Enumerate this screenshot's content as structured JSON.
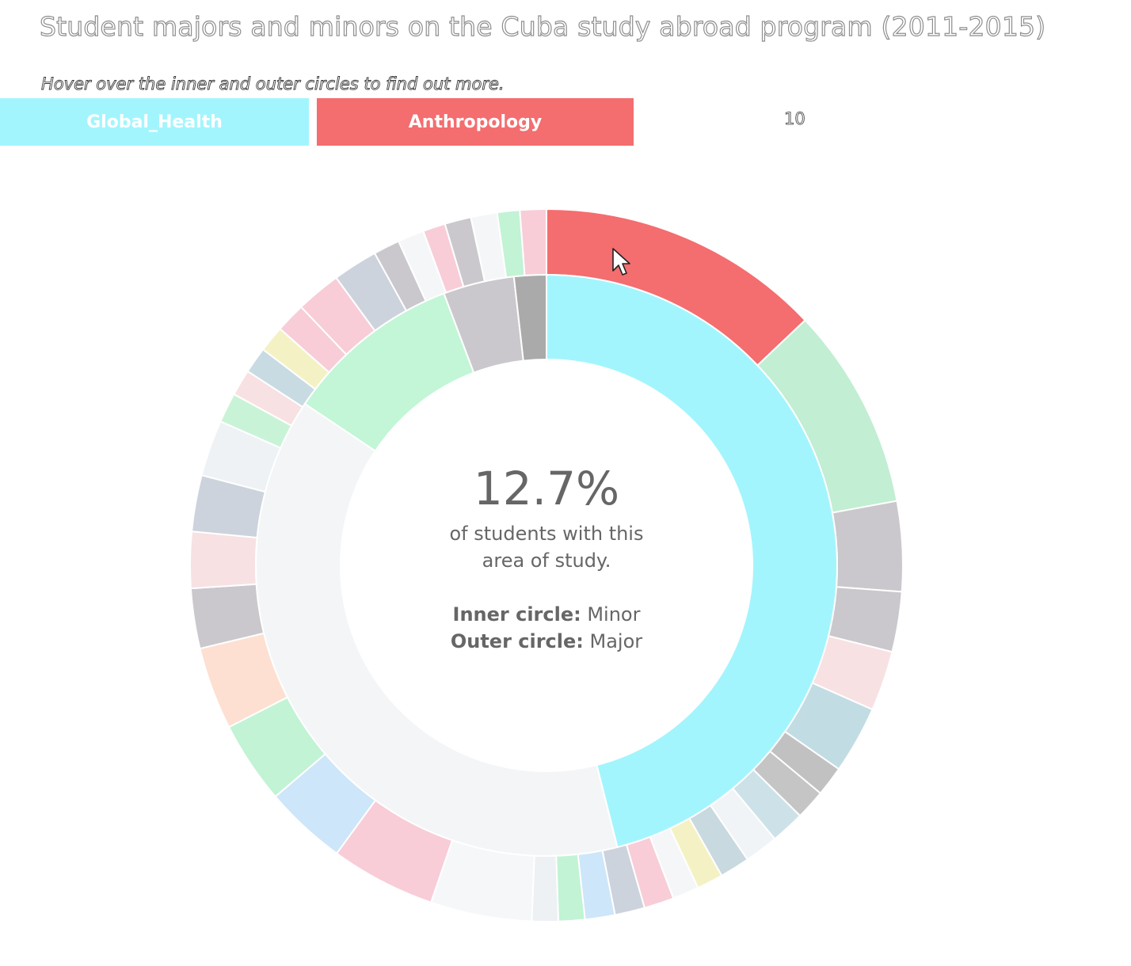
{
  "title": "Student majors and minors on the Cuba study abroad program (2011-2015)",
  "subtitle": "Hover over the inner and outer circles to find out more.",
  "breadcrumb": {
    "items": [
      {
        "label": "Global_Health",
        "color": "#a3f5fd"
      },
      {
        "label": "Anthropology",
        "color": "#f46d6f"
      }
    ],
    "end_label": "10"
  },
  "center": {
    "percentage": "12.7%",
    "line1": "of students with this",
    "line2": "area of study.",
    "inner_label": "Inner circle:",
    "inner_value": "Minor",
    "outer_label": "Outer circle:",
    "outer_value": "Major"
  },
  "chart_data": {
    "type": "sunburst",
    "highlighted_path": [
      "Global_Health",
      "Anthropology"
    ],
    "highlighted_share_percent": 12.7,
    "inner_ring": [
      {
        "share": 0.4608,
        "color": "#a3f5fd"
      },
      {
        "share": 0.383,
        "color": "#f3f5f7"
      },
      {
        "share": 0.0988,
        "color": "#c2f6d6"
      },
      {
        "share": 0.0395,
        "color": "#cac8cc"
      },
      {
        "share": 0.0179,
        "color": "#aaaaaa"
      }
    ],
    "outer_ring": [
      {
        "share": 0.1267,
        "color": "#f46d6f",
        "active": true
      },
      {
        "share": 0.09,
        "color": "#c2eed3"
      },
      {
        "share": 0.04,
        "color": "#cac8cc"
      },
      {
        "share": 0.0267,
        "color": "#cac8cc"
      },
      {
        "share": 0.0267,
        "color": "#f8e1e3"
      },
      {
        "share": 0.03,
        "color": "#c2dce4"
      },
      {
        "share": 0.0133,
        "color": "#c1c1c1"
      },
      {
        "share": 0.0133,
        "color": "#c5c5c5"
      },
      {
        "share": 0.015,
        "color": "#cde2e8"
      },
      {
        "share": 0.015,
        "color": "#f1f4f6"
      },
      {
        "share": 0.0133,
        "color": "#c8d9e0"
      },
      {
        "share": 0.0117,
        "color": "#f4f2c4"
      },
      {
        "share": 0.0117,
        "color": "#f5f6f7"
      },
      {
        "share": 0.0133,
        "color": "#f8cdd8"
      },
      {
        "share": 0.0133,
        "color": "#ccd3dc"
      },
      {
        "share": 0.0133,
        "color": "#cde6f9"
      },
      {
        "share": 0.0117,
        "color": "#c2f3d4"
      },
      {
        "share": 0.0117,
        "color": "#edf1f4"
      },
      {
        "share": 0.045,
        "color": "#f5f7f9"
      },
      {
        "share": 0.0467,
        "color": "#f8cdd8"
      },
      {
        "share": 0.0367,
        "color": "#cde6f9"
      },
      {
        "share": 0.0367,
        "color": "#c2f3d4"
      },
      {
        "share": 0.0367,
        "color": "#fde0d2"
      },
      {
        "share": 0.0267,
        "color": "#cac8cc"
      },
      {
        "share": 0.025,
        "color": "#f8e1e3"
      },
      {
        "share": 0.025,
        "color": "#ccd3dc"
      },
      {
        "share": 0.025,
        "color": "#eef2f5"
      },
      {
        "share": 0.0133,
        "color": "#c9f3d7"
      },
      {
        "share": 0.0117,
        "color": "#f8e1e3"
      },
      {
        "share": 0.0117,
        "color": "#c8dbe3"
      },
      {
        "share": 0.0117,
        "color": "#f4f2c4"
      },
      {
        "share": 0.0133,
        "color": "#f8cdd8"
      },
      {
        "share": 0.02,
        "color": "#f8cdd8"
      },
      {
        "share": 0.02,
        "color": "#ccd3dc"
      },
      {
        "share": 0.0117,
        "color": "#cac8cc"
      },
      {
        "share": 0.0117,
        "color": "#f5f6f7"
      },
      {
        "share": 0.01,
        "color": "#f8cdd8"
      },
      {
        "share": 0.0117,
        "color": "#cac8cc"
      },
      {
        "share": 0.0117,
        "color": "#f5f6f7"
      },
      {
        "share": 0.01,
        "color": "#c2f3d4"
      },
      {
        "share": 0.0117,
        "color": "#f8cdd8"
      }
    ]
  }
}
